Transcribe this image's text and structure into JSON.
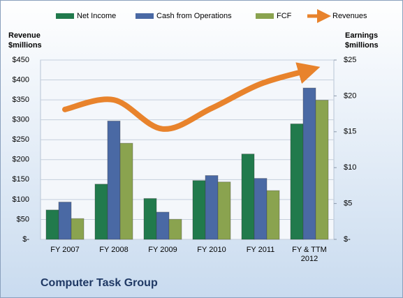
{
  "chart_data": {
    "type": "bar",
    "title": "Computer Task Group",
    "y_label": "Revenue $millions",
    "y2_label": "Earnings $millions",
    "categories": [
      "FY 2007",
      "FY 2008",
      "FY 2009",
      "FY 2010",
      "FY 2011",
      "FY & TTM 2012"
    ],
    "series": [
      {
        "name": "Net Income",
        "color": "#217a4c",
        "axis": "y2",
        "values": [
          4.1,
          7.7,
          5.7,
          8.2,
          11.9,
          16.1
        ]
      },
      {
        "name": "Cash from Operations",
        "color": "#4a69a4",
        "axis": "y2",
        "values": [
          5.2,
          16.5,
          3.8,
          8.9,
          8.5,
          21.1
        ]
      },
      {
        "name": "FCF",
        "color": "#8aa34f",
        "axis": "y2",
        "values": [
          2.9,
          13.4,
          2.8,
          8.0,
          6.8,
          19.4
        ]
      },
      {
        "name": "Revenues",
        "color": "#e8832c",
        "type": "line",
        "values": [
          326,
          350,
          277,
          329,
          390,
          425
        ]
      }
    ],
    "ylim": [
      0,
      450
    ],
    "yticks": [
      {
        "value": 0,
        "label": "$-"
      },
      {
        "value": 50,
        "label": "$50"
      },
      {
        "value": 100,
        "label": "$100"
      },
      {
        "value": 150,
        "label": "$150"
      },
      {
        "value": 200,
        "label": "$200"
      },
      {
        "value": 250,
        "label": "$250"
      },
      {
        "value": 300,
        "label": "$300"
      },
      {
        "value": 350,
        "label": "$350"
      },
      {
        "value": 400,
        "label": "$400"
      },
      {
        "value": 450,
        "label": "$450"
      }
    ],
    "y2lim": [
      0,
      25
    ],
    "y2ticks": [
      {
        "value": 0,
        "label": "$-"
      },
      {
        "value": 5,
        "label": "$5"
      },
      {
        "value": 10,
        "label": "$10"
      },
      {
        "value": 15,
        "label": "$15"
      },
      {
        "value": 20,
        "label": "$20"
      },
      {
        "value": 25,
        "label": "$25"
      }
    ],
    "grid": true
  }
}
